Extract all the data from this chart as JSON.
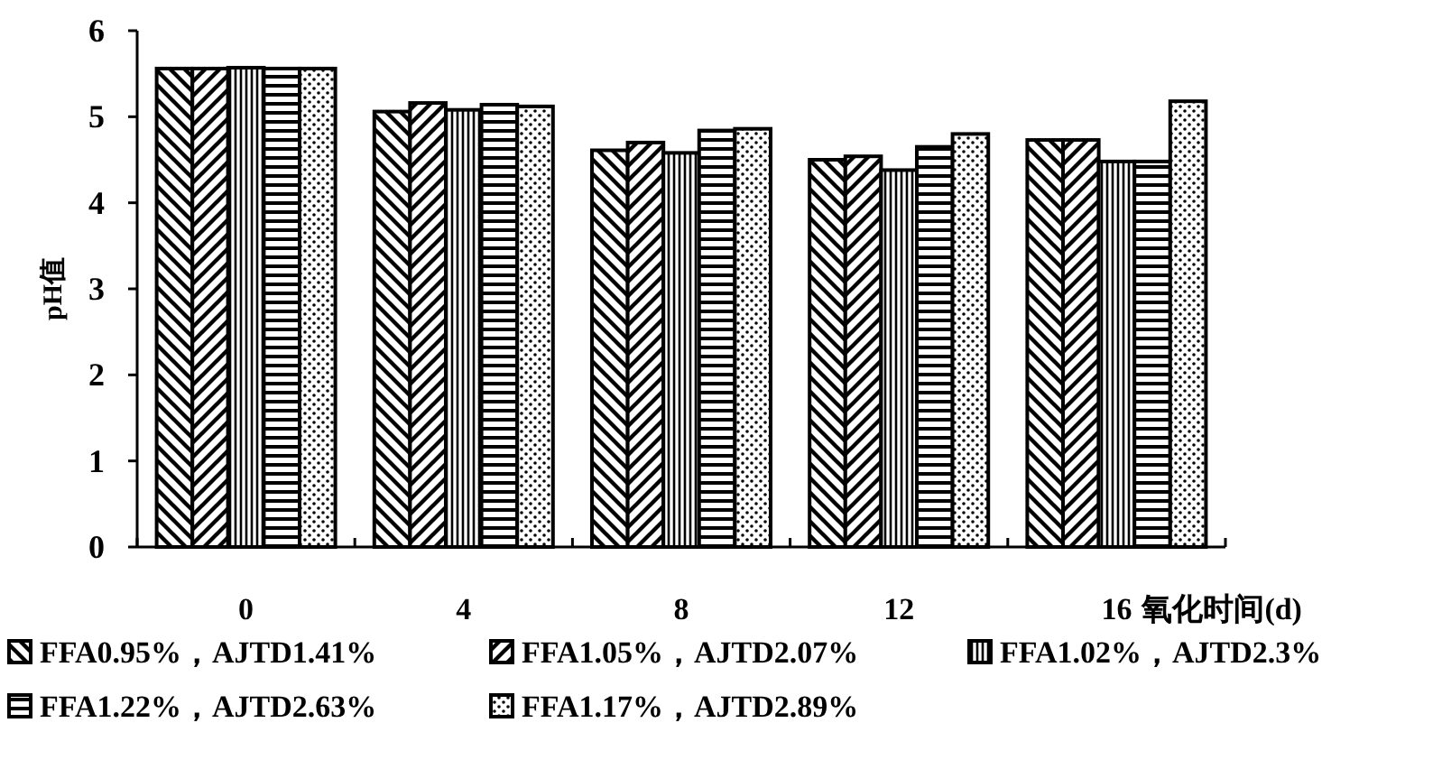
{
  "chart_data": {
    "type": "bar",
    "ylabel": "pH值",
    "xlabel": "氧化时间(d)",
    "categories": [
      "0",
      "4",
      "8",
      "12",
      "16"
    ],
    "series": [
      {
        "name": "FFA0.95%，AJTD1.41%",
        "color": "#000000",
        "values": [
          5.56,
          5.06,
          4.61,
          4.5,
          4.73
        ]
      },
      {
        "name": "FFA1.05%，AJTD2.07%",
        "color": "#000000",
        "values": [
          5.56,
          5.16,
          4.7,
          4.54,
          4.73
        ]
      },
      {
        "name": "FFA1.02%，AJTD2.3%",
        "color": "#000000",
        "values": [
          5.57,
          5.08,
          4.58,
          4.38,
          4.48
        ]
      },
      {
        "name": "FFA1.22%，AJTD2.63%",
        "color": "#000000",
        "values": [
          5.56,
          5.14,
          4.84,
          4.65,
          4.48
        ]
      },
      {
        "name": "FFA1.17%，AJTD2.89%",
        "color": "#000000",
        "values": [
          5.56,
          5.12,
          4.86,
          4.8,
          5.18
        ]
      }
    ],
    "ylim": [
      0,
      6
    ],
    "yticks": [
      0,
      1,
      2,
      3,
      4,
      5,
      6
    ],
    "legend": "bottom"
  }
}
